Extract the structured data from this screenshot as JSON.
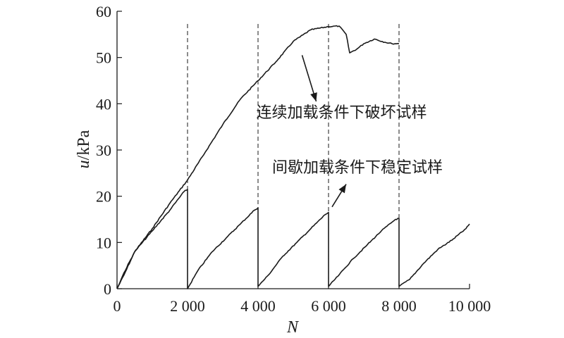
{
  "chart_data": {
    "type": "line",
    "xlabel": "N",
    "ylabel_var": "u",
    "ylabel_unit": "/kPa",
    "xlim": [
      0,
      10000
    ],
    "ylim": [
      0,
      60
    ],
    "x_ticks": [
      0,
      2000,
      4000,
      6000,
      8000,
      10000
    ],
    "x_tick_labels": [
      "0",
      "2 000",
      "4 000",
      "6 000",
      "8 000",
      "10 000"
    ],
    "y_ticks": [
      0,
      10,
      20,
      30,
      40,
      50,
      60
    ],
    "y_tick_labels": [
      "0",
      "10",
      "20",
      "30",
      "40",
      "50",
      "60"
    ],
    "vlines": [
      2000,
      4000,
      6000,
      8000
    ],
    "grid": false,
    "annotations": [
      {
        "text": "连续加载条件下破坏试样",
        "x": 3950,
        "y": 37.0,
        "arrow_from": [
          5250,
          50.5
        ],
        "arrow_to": [
          5650,
          40.5
        ]
      },
      {
        "text": "间歇加载条件下稳定试样",
        "x": 4400,
        "y": 25.1,
        "arrow_from": [
          6100,
          17.7
        ],
        "arrow_to": [
          6500,
          22.6
        ]
      }
    ],
    "series": [
      {
        "x": [
          0,
          200,
          500,
          1000,
          1500,
          2000,
          2500,
          3000,
          3500,
          4000,
          4500,
          5000,
          5500,
          6000,
          6300,
          6500,
          6600,
          6800,
          7000,
          7300,
          7600,
          7800,
          8000
        ],
        "y": [
          0,
          3,
          8,
          13,
          18.5,
          23.5,
          29.5,
          35.5,
          41,
          45,
          49,
          53.5,
          56,
          56.7,
          56.8,
          55,
          51,
          51.8,
          53,
          54,
          53.3,
          53,
          53
        ]
      },
      {
        "x": [
          0,
          200,
          500,
          1000,
          1500,
          1900,
          2000,
          2000,
          2300,
          2700,
          3100,
          3500,
          3900,
          4000,
          4000,
          4300,
          4700,
          5100,
          5500,
          5900,
          6000,
          6000,
          6300,
          6700,
          7100,
          7500,
          7900,
          8000,
          8000,
          8300,
          8700,
          9100,
          9500,
          9900,
          10000
        ],
        "y": [
          0,
          3.5,
          8,
          12.5,
          17,
          21,
          21.5,
          0,
          4,
          8,
          11,
          14,
          17,
          17.5,
          0.5,
          3,
          7,
          10,
          13,
          16,
          16.5,
          0.5,
          3,
          6.5,
          9.5,
          12.5,
          15,
          15.2,
          0.5,
          2,
          5.5,
          8.5,
          10.5,
          13,
          14
        ]
      }
    ]
  }
}
